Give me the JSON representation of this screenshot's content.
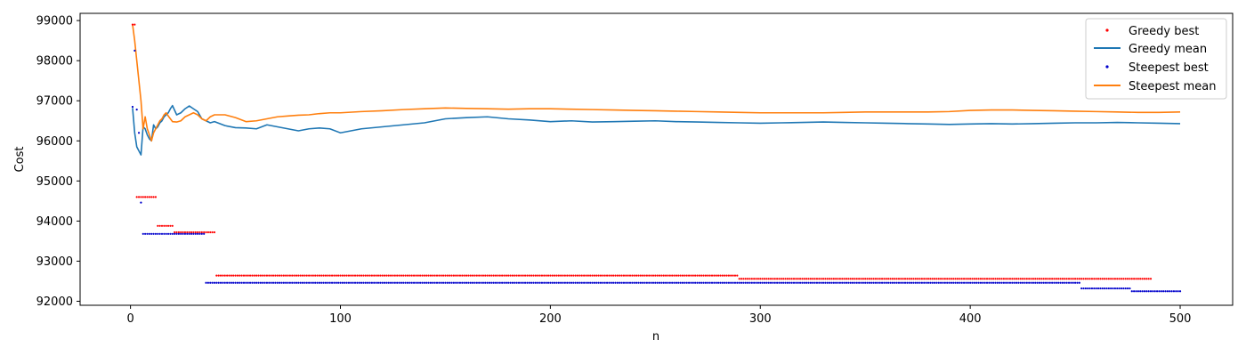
{
  "chart_data": {
    "type": "line",
    "xlabel": "n",
    "ylabel": "Cost",
    "xlim": [
      -24,
      525
    ],
    "ylim": [
      91900,
      99180
    ],
    "x_ticks": [
      0,
      100,
      200,
      300,
      400,
      500
    ],
    "y_ticks": [
      92000,
      93000,
      94000,
      95000,
      96000,
      97000,
      98000,
      99000
    ],
    "grid": false,
    "legend_position": "top-right",
    "colors": {
      "greedy_best": "#ff0000",
      "greedy_mean": "#1f77b4",
      "steepest_best": "#0000cc",
      "steepest_mean": "#ff7f0e"
    },
    "series": [
      {
        "name": "Greedy best",
        "kind": "scatter",
        "steps": [
          [
            1,
            98900
          ],
          [
            3,
            94600
          ],
          [
            13,
            93880
          ],
          [
            21,
            93720
          ],
          [
            41,
            92640
          ],
          [
            290,
            92560
          ],
          [
            486,
            92560
          ]
        ]
      },
      {
        "name": "Greedy mean",
        "kind": "line",
        "x": [
          1,
          2,
          3,
          4,
          5,
          6,
          7,
          8,
          9,
          10,
          11,
          12,
          13,
          14,
          15,
          16,
          17,
          18,
          19,
          20,
          22,
          24,
          26,
          28,
          30,
          32,
          34,
          36,
          38,
          40,
          45,
          50,
          55,
          60,
          65,
          70,
          75,
          80,
          85,
          90,
          95,
          100,
          110,
          120,
          130,
          140,
          150,
          160,
          170,
          180,
          190,
          200,
          210,
          220,
          230,
          240,
          250,
          260,
          270,
          280,
          290,
          300,
          310,
          320,
          330,
          340,
          350,
          360,
          370,
          380,
          390,
          400,
          410,
          420,
          430,
          440,
          450,
          460,
          470,
          480,
          490,
          500
        ],
        "values": [
          96820,
          96200,
          95850,
          95750,
          95650,
          96350,
          96300,
          96150,
          96050,
          96000,
          96400,
          96300,
          96350,
          96450,
          96500,
          96600,
          96650,
          96700,
          96800,
          96880,
          96650,
          96700,
          96800,
          96870,
          96800,
          96730,
          96550,
          96500,
          96450,
          96480,
          96380,
          96330,
          96320,
          96300,
          96400,
          96350,
          96300,
          96250,
          96300,
          96320,
          96300,
          96200,
          96300,
          96350,
          96400,
          96450,
          96550,
          96580,
          96600,
          96550,
          96520,
          96480,
          96500,
          96470,
          96480,
          96490,
          96500,
          96480,
          96470,
          96460,
          96450,
          96440,
          96450,
          96460,
          96470,
          96460,
          96450,
          96440,
          96430,
          96420,
          96410,
          96420,
          96430,
          96420,
          96430,
          96440,
          96450,
          96450,
          96460,
          96450,
          96440,
          96430
        ]
      },
      {
        "name": "Steepest best",
        "kind": "scatter",
        "steps": [
          [
            1,
            96850
          ],
          [
            2,
            98250
          ],
          [
            3,
            96780
          ],
          [
            4,
            96200
          ],
          [
            5,
            94460
          ],
          [
            6,
            93680
          ],
          [
            36,
            92460
          ],
          [
            453,
            92320
          ],
          [
            477,
            92250
          ],
          [
            500,
            92250
          ]
        ]
      },
      {
        "name": "Steepest mean",
        "kind": "line",
        "x": [
          1,
          2,
          3,
          4,
          5,
          6,
          7,
          8,
          9,
          10,
          11,
          12,
          13,
          14,
          15,
          16,
          17,
          18,
          19,
          20,
          22,
          24,
          26,
          28,
          30,
          32,
          34,
          36,
          38,
          40,
          45,
          50,
          55,
          60,
          65,
          70,
          75,
          80,
          85,
          90,
          95,
          100,
          110,
          120,
          130,
          140,
          150,
          160,
          170,
          180,
          190,
          200,
          210,
          220,
          230,
          240,
          250,
          260,
          270,
          280,
          290,
          300,
          310,
          320,
          330,
          340,
          350,
          360,
          370,
          380,
          390,
          400,
          410,
          420,
          430,
          440,
          450,
          460,
          470,
          480,
          490,
          500
        ],
        "values": [
          98900,
          98500,
          98000,
          97500,
          97000,
          96300,
          96600,
          96300,
          96150,
          96000,
          96200,
          96300,
          96400,
          96500,
          96550,
          96650,
          96700,
          96620,
          96550,
          96480,
          96470,
          96500,
          96600,
          96650,
          96700,
          96650,
          96550,
          96500,
          96600,
          96650,
          96650,
          96580,
          96480,
          96500,
          96550,
          96600,
          96620,
          96640,
          96650,
          96680,
          96700,
          96700,
          96730,
          96750,
          96780,
          96800,
          96820,
          96810,
          96800,
          96790,
          96800,
          96800,
          96790,
          96780,
          96770,
          96760,
          96750,
          96740,
          96730,
          96720,
          96710,
          96700,
          96700,
          96700,
          96700,
          96710,
          96720,
          96720,
          96720,
          96720,
          96730,
          96760,
          96770,
          96770,
          96760,
          96750,
          96740,
          96730,
          96720,
          96710,
          96710,
          96720
        ]
      }
    ]
  }
}
